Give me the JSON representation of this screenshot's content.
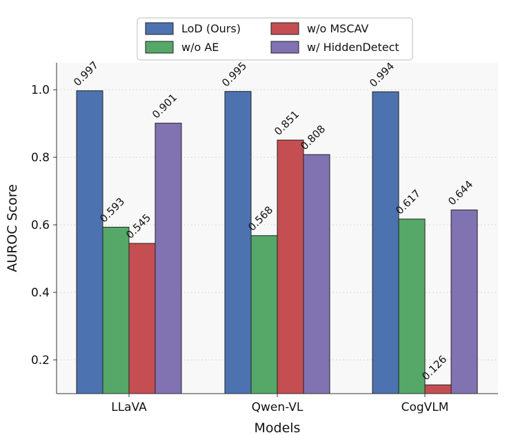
{
  "chart_data": {
    "type": "bar",
    "title": "",
    "xlabel": "Models",
    "ylabel": "AUROC Score",
    "categories": [
      "LLaVA",
      "Qwen-VL",
      "CogVLM"
    ],
    "ylim": [
      0.1,
      1.08
    ],
    "yticks": [
      "0.2",
      "0.4",
      "0.6",
      "0.8",
      "1.0"
    ],
    "grid": "horizontal dotted",
    "legend_position": "top-center",
    "series": [
      {
        "name": "LoD (Ours)",
        "color": "#4c72b0",
        "values": [
          0.997,
          0.995,
          0.994
        ],
        "labels": [
          "0.997",
          "0.995",
          "0.994"
        ]
      },
      {
        "name": "w/o AE",
        "color": "#55a868",
        "values": [
          0.593,
          0.568,
          0.617
        ],
        "labels": [
          "0.593",
          "0.568",
          "0.617"
        ]
      },
      {
        "name": "w/o MSCAV",
        "color": "#c44e52",
        "values": [
          0.545,
          0.851,
          0.126
        ],
        "labels": [
          "0.545",
          "0.851",
          "0.126"
        ]
      },
      {
        "name": "w/ HiddenDetect",
        "color": "#8172b2",
        "values": [
          0.901,
          0.808,
          0.644
        ],
        "labels": [
          "0.901",
          "0.808",
          "0.644"
        ]
      }
    ]
  }
}
